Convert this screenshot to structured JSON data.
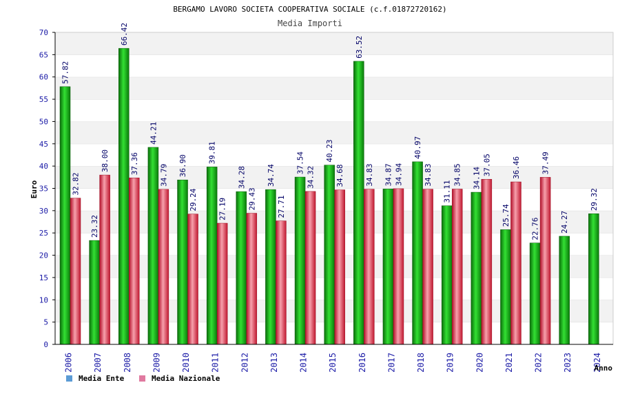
{
  "chart_data": {
    "type": "bar",
    "title": "BERGAMO LAVORO SOCIETA COOPERATIVA SOCIALE (c.f.01872720162)",
    "subtitle": "Media Importi",
    "xlabel": "Anno",
    "ylabel": "Euro",
    "ylim": [
      0,
      70
    ],
    "yticks": [
      0,
      5,
      10,
      15,
      20,
      25,
      30,
      35,
      40,
      45,
      50,
      55,
      60,
      65,
      70
    ],
    "grid": true,
    "legend_position": "bottom-left",
    "categories": [
      "2006",
      "2007",
      "2008",
      "2009",
      "2010",
      "2011",
      "2012",
      "2013",
      "2014",
      "2015",
      "2016",
      "2017",
      "2018",
      "2019",
      "2020",
      "2021",
      "2022",
      "2023",
      "2024"
    ],
    "series": [
      {
        "name": "Media Ente",
        "color": "#1aa81a",
        "legend_color": "#5b9bd5",
        "values": [
          57.82,
          23.32,
          66.42,
          44.21,
          36.9,
          39.81,
          34.28,
          34.74,
          37.54,
          40.23,
          63.52,
          34.87,
          40.97,
          31.11,
          34.14,
          25.74,
          22.76,
          24.27,
          29.32
        ],
        "labels": [
          "57.82",
          "23.32",
          "66.42",
          "44.21",
          "36.90",
          "39.81",
          "34.28",
          "34.74",
          "37.54",
          "40.23",
          "63.52",
          "34.87",
          "40.97",
          "31.11",
          "34.14",
          "25.74",
          "22.76",
          "24.27",
          "29.32"
        ]
      },
      {
        "name": "Media Nazionale",
        "color": "#e0344a",
        "legend_color": "#e07aa0",
        "values": [
          32.82,
          38.0,
          37.36,
          34.79,
          29.24,
          27.19,
          29.43,
          27.71,
          34.32,
          34.68,
          34.83,
          34.94,
          34.83,
          34.85,
          37.05,
          36.46,
          37.49,
          null,
          null
        ],
        "labels": [
          "32.82",
          "38.00",
          "37.36",
          "34.79",
          "29.24",
          "27.19",
          "29.43",
          "27.71",
          "34.32",
          "34.68",
          "34.83",
          "34.94",
          "34.83",
          "34.85",
          "37.05",
          "36.46",
          "37.49",
          null,
          null
        ]
      }
    ]
  }
}
